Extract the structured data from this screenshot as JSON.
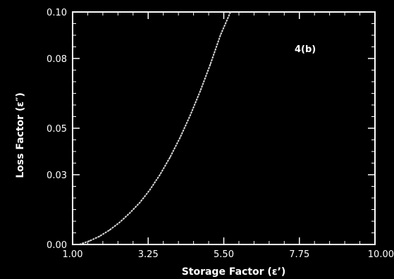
{
  "chart_data": {
    "type": "line",
    "title": "",
    "annotation": "4(b)",
    "xlabel": "Storage Factor (ε’)",
    "ylabel": "Loss Factor (ε″)",
    "xlim": [
      1.0,
      10.0
    ],
    "ylim": [
      0.0,
      0.1
    ],
    "xticks": [
      1.0,
      3.25,
      5.5,
      7.75,
      10.0
    ],
    "xtick_labels": [
      "1.00",
      "3.25",
      "5.50",
      "7.75",
      "10.00"
    ],
    "yticks": [
      0.0,
      0.03,
      0.05,
      0.08,
      0.1
    ],
    "ytick_labels": [
      "0.00",
      "0.03",
      "0.05",
      "0.08",
      "0.10"
    ],
    "grid": false,
    "colors": {
      "background": "#000000",
      "axes": "#ffffff",
      "series": "#d8d8d8"
    },
    "series": [
      {
        "x": [
          1.2,
          1.5,
          1.8,
          2.1,
          2.4,
          2.7,
          3.0,
          3.3,
          3.6,
          3.9,
          4.2,
          4.5,
          4.8,
          5.1,
          5.4,
          5.7
        ],
        "y": [
          0.0,
          0.0015,
          0.0035,
          0.0062,
          0.0095,
          0.0135,
          0.018,
          0.0235,
          0.03,
          0.0375,
          0.046,
          0.0555,
          0.066,
          0.0775,
          0.09,
          0.1
        ]
      }
    ]
  }
}
